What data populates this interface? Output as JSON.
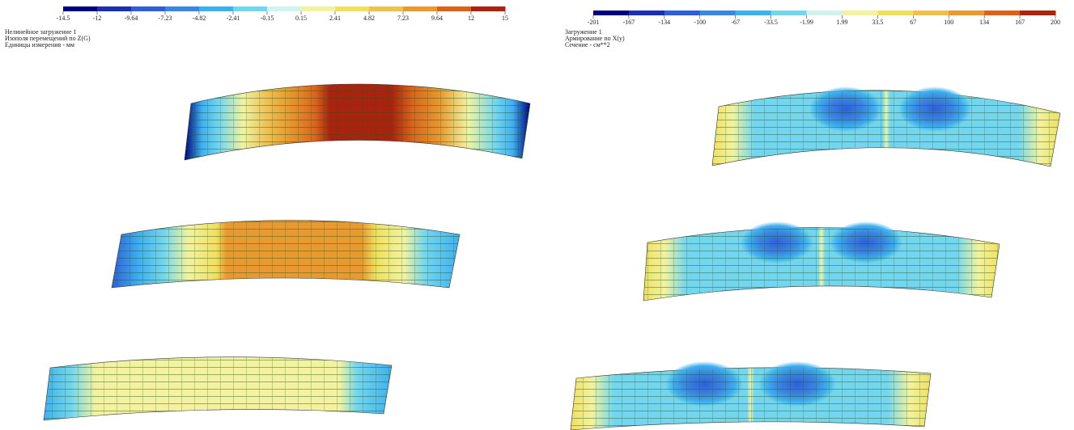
{
  "left_panel": {
    "legend": {
      "labels": [
        "-14.5",
        "-12",
        "-9.64",
        "-7.23",
        "-4.82",
        "-2.41",
        "-0.15",
        "0.15",
        "2.41",
        "4.82",
        "7.23",
        "9.64",
        "12",
        "15"
      ],
      "colors": [
        "#00007a",
        "#1c2fb0",
        "#2f5fd8",
        "#3a86e0",
        "#3fb0ee",
        "#74d6ee",
        "#d2f2ee",
        "#f2f2a0",
        "#f0e060",
        "#eec050",
        "#e89a30",
        "#d8641c",
        "#a8240e"
      ]
    },
    "notes": [
      "Нелинейное загружение 1",
      "Изополя перемещений по Z(G)",
      "Единицы измерения - мм"
    ]
  },
  "right_panel": {
    "legend": {
      "labels": [
        "-201",
        "-167",
        "-134",
        "-100",
        "-67",
        "-33.5",
        "-1.99",
        "1.99",
        "33.5",
        "67",
        "100",
        "134",
        "167",
        "200"
      ],
      "colors": [
        "#00007a",
        "#1c2fb0",
        "#2f5fd8",
        "#3a86e0",
        "#3fb0ee",
        "#74d6ee",
        "#d2f2ee",
        "#f2f2a0",
        "#f0e060",
        "#eec050",
        "#e89a30",
        "#d8641c",
        "#a8240e"
      ]
    },
    "notes": [
      "Загружение 1",
      "Армирование по Х(у)",
      "Сечение - см**2"
    ]
  }
}
